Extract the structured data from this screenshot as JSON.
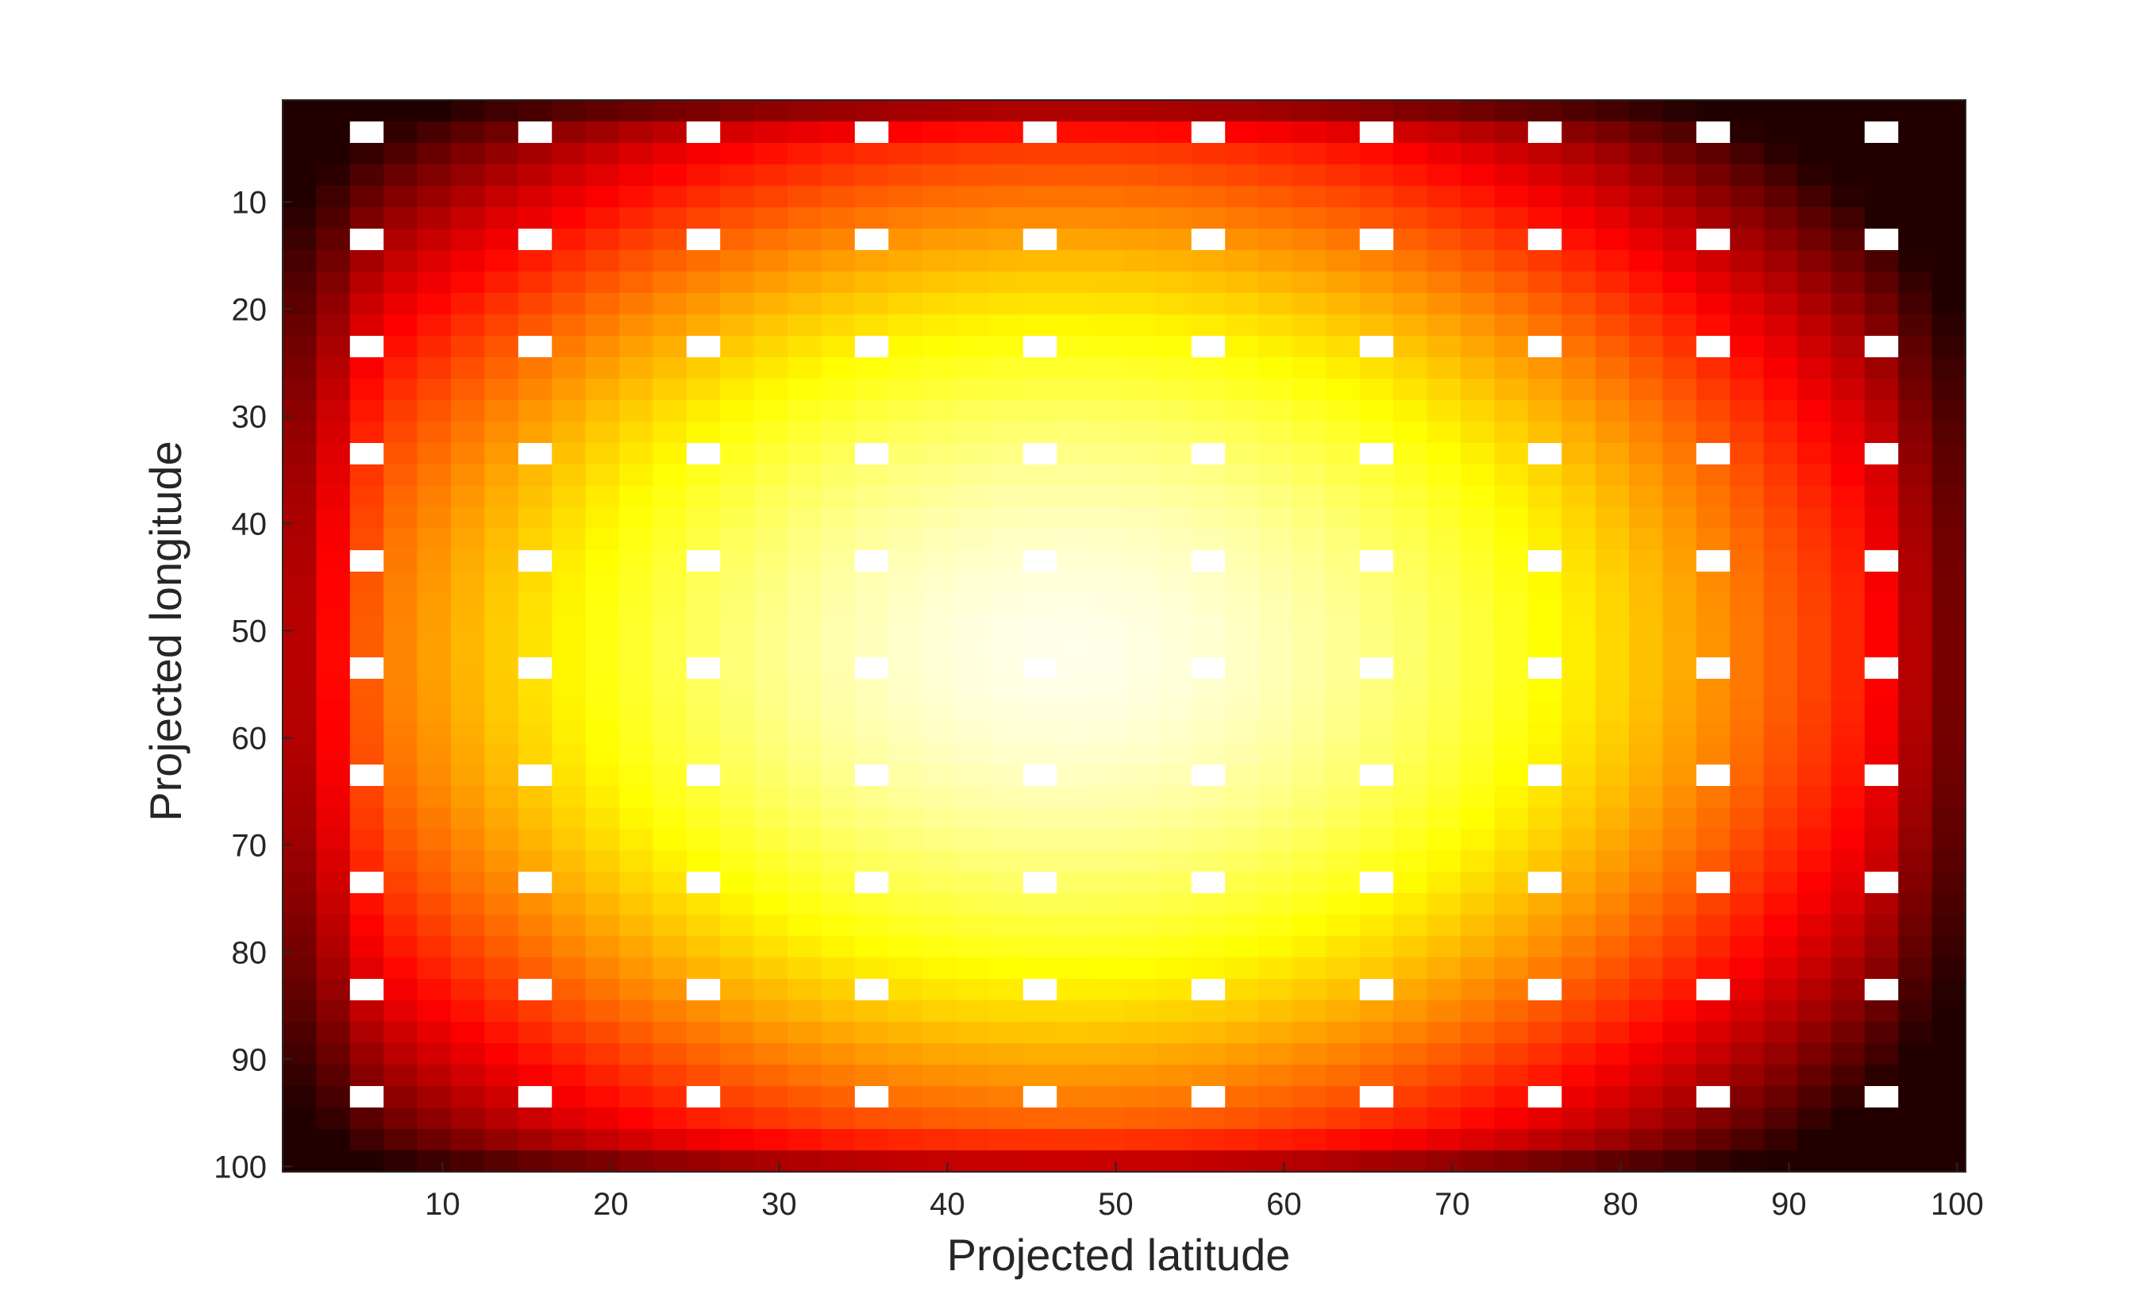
{
  "chart_data": {
    "type": "heatmap",
    "title": "",
    "xlabel": "Projected latitude",
    "ylabel": "Projected longitude",
    "x_range": [
      1,
      100
    ],
    "y_range": [
      1,
      100
    ],
    "y_direction": "reversed",
    "grid": false,
    "legend": "none",
    "colormap": "hot",
    "colormap_stops": [
      "#000000",
      "#ff0000",
      "#ffff00",
      "#ffffff"
    ],
    "cell_size": 2,
    "x_ticks": [
      10,
      20,
      30,
      40,
      50,
      60,
      70,
      80,
      90,
      100
    ],
    "y_ticks": [
      10,
      20,
      30,
      40,
      50,
      60,
      70,
      80,
      90,
      100
    ],
    "field": {
      "description_of_values": "normalized intensity 0-1, elliptical maximum near center",
      "center": [
        47,
        52
      ],
      "peak": 0.98,
      "edge_min": 0.05
    },
    "highlight_points": {
      "x": [
        5,
        15,
        25,
        35,
        45,
        55,
        65,
        75,
        85,
        95
      ],
      "y": [
        3,
        13,
        23,
        33,
        43,
        53,
        63,
        73,
        83,
        93
      ],
      "value": 1.0
    }
  }
}
